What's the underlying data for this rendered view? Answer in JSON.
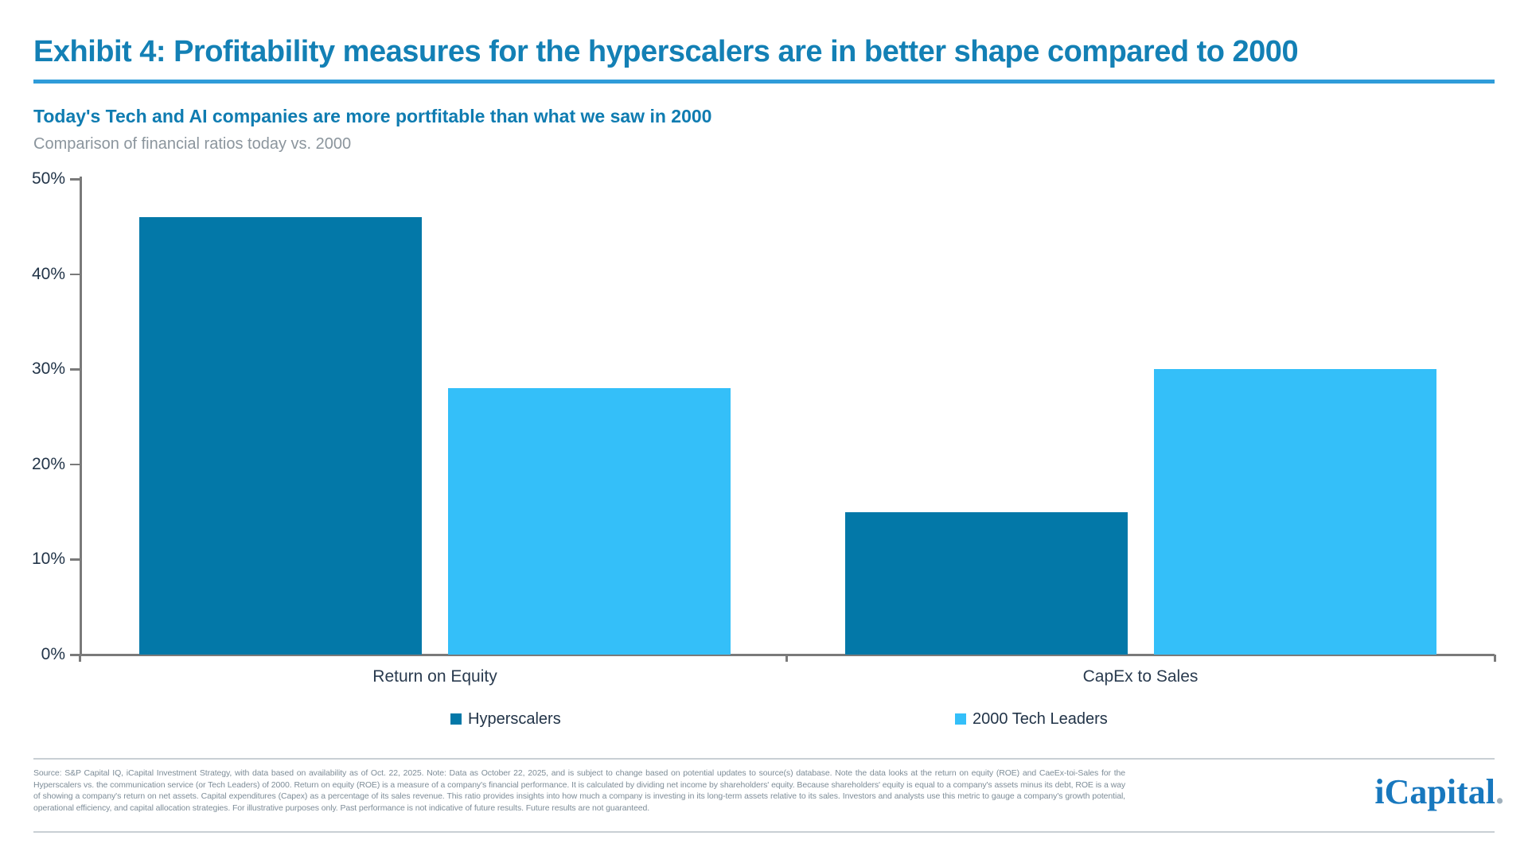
{
  "header": {
    "title": "Exhibit 4: Profitability measures for the hyperscalers are in better shape compared to 2000",
    "subtitle": "Today's Tech and AI companies are more portfitable than what we saw in 2000",
    "caption": "Comparison of financial ratios today vs. 2000"
  },
  "chart_data": {
    "type": "bar",
    "categories": [
      "Return on Equity",
      "CapEx to Sales"
    ],
    "series": [
      {
        "name": "Hyperscalers",
        "color": "#0378A8",
        "values": [
          46,
          15
        ]
      },
      {
        "name": "2000 Tech Leaders",
        "color": "#34BFF9",
        "values": [
          28,
          30
        ]
      }
    ],
    "unit": "%",
    "ylim": [
      0,
      50
    ],
    "ytick_values": [
      0,
      10,
      20,
      30,
      40,
      50
    ],
    "ytick_labels": [
      "0%",
      "10%",
      "20%",
      "30%",
      "40%",
      "50%"
    ],
    "grid": false,
    "legend_position": "bottom"
  },
  "footer": {
    "disclosure": "Source: S&P Capital IQ, iCapital Investment Strategy, with data based on availability as of Oct. 22, 2025. Note: Data as October 22, 2025, and is subject to change based on potential updates to source(s) database. Note the data looks at the return on equity (ROE) and CaeEx-toi-Sales for the Hyperscalers vs. the communication service (or Tech Leaders) of 2000. Return on equity (ROE) is a measure of a company's financial performance. It is calculated by dividing net income by shareholders' equity. Because shareholders' equity is equal to a company's assets minus its debt, ROE is a way of showing a company's return on net assets. Capital expenditures (Capex) as a percentage of its sales revenue. This ratio provides insights into how much a company is investing in its long-term assets relative to its sales. Investors and analysts use this metric to gauge a company's growth potential, operational efficiency, and capital allocation strategies. For illustrative purposes only. Past performance is not indicative of future results. Future results are not guaranteed.",
    "logo_text": "iCapital",
    "logo_dot": "."
  },
  "colors": {
    "title_blue": "#1380B5",
    "subtitle_blue": "#0F7CB1",
    "title_rule_blue": "#2F9CD9",
    "caption_gray": "#8B959D",
    "axis_text_navy": "#223448",
    "axis_line_gray": "#7A7A7A",
    "bar_dark": "#0378A8",
    "bar_light": "#34BFF9",
    "footer_text_gray": "#7E8D98",
    "footer_rule_gray": "#C9CFD4",
    "logo_blue": "#1878BE",
    "logo_dot_gray": "#9FB0BC"
  }
}
